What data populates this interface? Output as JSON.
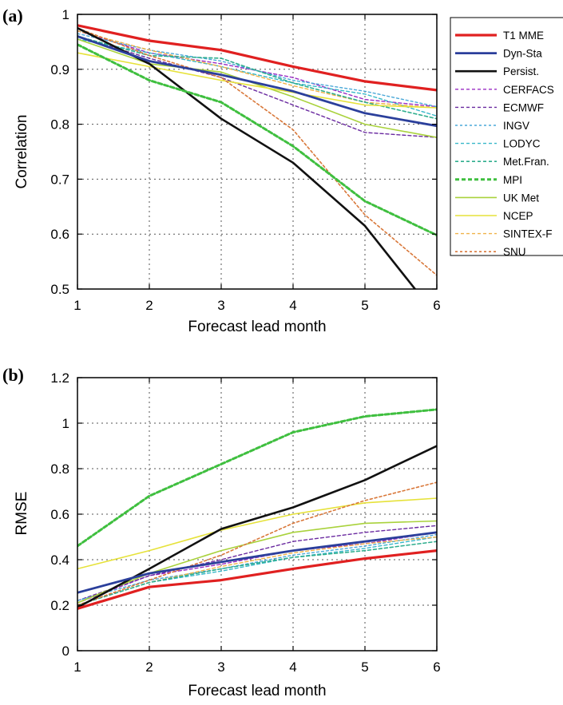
{
  "colors": {
    "T1 MME": "#e02020",
    "Dyn-Sta": "#2b3f9b",
    "Persist.": "#111111",
    "CERFACS": "#9a2cc4",
    "ECMWF": "#6a2aa0",
    "INGV": "#4aa8d8",
    "LODYC": "#38b7c9",
    "Met.Fran.": "#2fae8e",
    "MPI": "#3fbf3f",
    "UK Met": "#a9d23c",
    "NCEP": "#e6e23a",
    "SINTEX-F": "#f0b24a",
    "SNU": "#d9783a"
  },
  "legend": {
    "items": [
      "T1 MME",
      "Dyn-Sta",
      "Persist.",
      "CERFACS",
      "ECMWF",
      "INGV",
      "LODYC",
      "Met.Fran.",
      "MPI",
      "UK Met",
      "NCEP",
      "SINTEX-F",
      "SNU"
    ]
  },
  "chart_data": [
    {
      "panel": "(a)",
      "type": "line",
      "xlabel": "Forecast lead month",
      "ylabel": "Correlation",
      "xlim": [
        1,
        6
      ],
      "ylim": [
        0.5,
        1
      ],
      "xticks": [
        "1",
        "2",
        "3",
        "4",
        "5",
        "6"
      ],
      "yticks": [
        "0.5",
        "0.6",
        "0.7",
        "0.8",
        "0.9",
        "1"
      ],
      "grid": true,
      "legend_position": "right",
      "x": [
        1,
        2,
        3,
        4,
        5,
        6
      ],
      "series": [
        {
          "name": "T1 MME",
          "values": [
            0.98,
            0.952,
            0.935,
            0.905,
            0.878,
            0.862
          ]
        },
        {
          "name": "Dyn-Sta",
          "values": [
            0.96,
            0.915,
            0.89,
            0.86,
            0.82,
            0.797
          ]
        },
        {
          "name": "Persist.",
          "values": [
            0.975,
            0.91,
            0.81,
            0.73,
            0.615,
            0.45
          ]
        },
        {
          "name": "CERFACS",
          "values": [
            0.97,
            0.93,
            0.91,
            0.885,
            0.845,
            0.832
          ]
        },
        {
          "name": "ECMWF",
          "values": [
            0.96,
            0.92,
            0.885,
            0.835,
            0.785,
            0.776
          ]
        },
        {
          "name": "INGV",
          "values": [
            0.965,
            0.935,
            0.915,
            0.88,
            0.86,
            0.832
          ]
        },
        {
          "name": "LODYC",
          "values": [
            0.955,
            0.93,
            0.905,
            0.875,
            0.855,
            0.815
          ]
        },
        {
          "name": "Met.Fran.",
          "values": [
            0.96,
            0.925,
            0.92,
            0.875,
            0.84,
            0.81
          ]
        },
        {
          "name": "MPI",
          "values": [
            0.945,
            0.88,
            0.84,
            0.76,
            0.66,
            0.598
          ]
        },
        {
          "name": "UK Met",
          "values": [
            0.955,
            0.91,
            0.895,
            0.85,
            0.8,
            0.776
          ]
        },
        {
          "name": "NCEP",
          "values": [
            0.93,
            0.905,
            0.88,
            0.858,
            0.835,
            0.83
          ]
        },
        {
          "name": "SINTEX-F",
          "values": [
            0.97,
            0.935,
            0.905,
            0.87,
            0.84,
            0.83
          ]
        },
        {
          "name": "SNU",
          "values": [
            0.975,
            0.925,
            0.885,
            0.79,
            0.635,
            0.525
          ]
        }
      ]
    },
    {
      "panel": "(b)",
      "type": "line",
      "xlabel": "Forecast lead month",
      "ylabel": "RMSE",
      "xlim": [
        1,
        6
      ],
      "ylim": [
        0,
        1.2
      ],
      "xticks": [
        "1",
        "2",
        "3",
        "4",
        "5",
        "6"
      ],
      "yticks": [
        "0",
        "0.2",
        "0.4",
        "0.6",
        "0.8",
        "1",
        "1.2"
      ],
      "grid": true,
      "x": [
        1,
        2,
        3,
        4,
        5,
        6
      ],
      "series": [
        {
          "name": "T1 MME",
          "values": [
            0.185,
            0.28,
            0.31,
            0.36,
            0.405,
            0.44
          ]
        },
        {
          "name": "Dyn-Sta",
          "values": [
            0.255,
            0.34,
            0.39,
            0.44,
            0.48,
            0.52
          ]
        },
        {
          "name": "Persist.",
          "values": [
            0.19,
            0.36,
            0.535,
            0.63,
            0.75,
            0.9
          ]
        },
        {
          "name": "CERFACS",
          "values": [
            0.21,
            0.33,
            0.38,
            0.44,
            0.47,
            0.52
          ]
        },
        {
          "name": "ECMWF",
          "values": [
            0.22,
            0.33,
            0.4,
            0.48,
            0.52,
            0.55
          ]
        },
        {
          "name": "INGV",
          "values": [
            0.22,
            0.31,
            0.36,
            0.42,
            0.46,
            0.51
          ]
        },
        {
          "name": "LODYC",
          "values": [
            0.2,
            0.3,
            0.35,
            0.41,
            0.45,
            0.5
          ]
        },
        {
          "name": "Met.Fran.",
          "values": [
            0.2,
            0.3,
            0.36,
            0.41,
            0.44,
            0.48
          ]
        },
        {
          "name": "MPI",
          "values": [
            0.46,
            0.68,
            0.82,
            0.96,
            1.03,
            1.06
          ]
        },
        {
          "name": "UK Met",
          "values": [
            0.21,
            0.34,
            0.44,
            0.52,
            0.56,
            0.57
          ]
        },
        {
          "name": "NCEP",
          "values": [
            0.36,
            0.44,
            0.53,
            0.6,
            0.65,
            0.67
          ]
        },
        {
          "name": "SINTEX-F",
          "values": [
            0.2,
            0.3,
            0.37,
            0.43,
            0.47,
            0.5
          ]
        },
        {
          "name": "SNU",
          "values": [
            0.2,
            0.31,
            0.42,
            0.56,
            0.66,
            0.74
          ]
        }
      ]
    }
  ]
}
